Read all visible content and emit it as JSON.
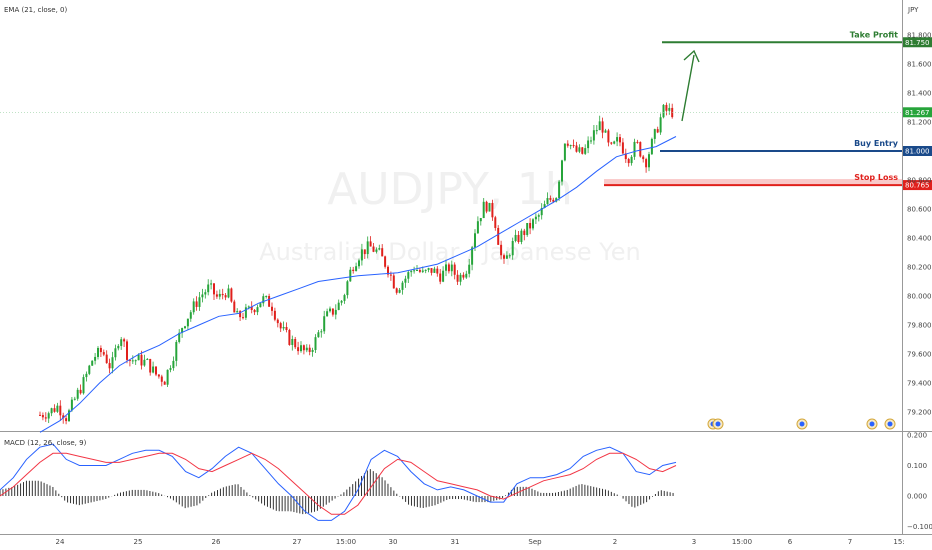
{
  "main_pane": {
    "indicator_label": "EMA (21, close, 0)",
    "currency_icon_text": "JPY",
    "watermark_symbol": "AUDJPY, 1h",
    "watermark_name": "Australian Dollar / Japanese Yen",
    "event_icon": "dividend-marker-icon"
  },
  "macd_pane": {
    "indicator_label": "MACD (12, 26, close, 9)"
  },
  "chart_data": [
    {
      "type": "candlestick",
      "symbol": "AUDJPY",
      "timeframe": "1h",
      "ylim": [
        79.1,
        81.95
      ],
      "y_ticks": [
        "81.800",
        "81.600",
        "81.400",
        "81.200",
        "80.800",
        "80.600",
        "80.400",
        "80.200",
        "80.000",
        "79.800",
        "79.600",
        "79.400",
        "79.200"
      ],
      "x_ticks": [
        "24",
        "25",
        "26",
        "27",
        "15:00",
        "30",
        "31",
        "Sep",
        "2",
        "3",
        "15:00",
        "6",
        "7",
        "15:"
      ],
      "close_path": [
        79.18,
        79.2,
        79.24,
        79.16,
        79.3,
        79.42,
        79.58,
        79.62,
        79.5,
        79.75,
        79.56,
        79.56,
        79.54,
        79.46,
        79.42,
        79.6,
        79.8,
        79.9,
        80.0,
        80.06,
        79.98,
        80.04,
        79.85,
        79.88,
        79.92,
        79.98,
        79.94,
        79.78,
        79.7,
        79.65,
        79.6,
        79.7,
        79.85,
        79.9,
        79.98,
        80.2,
        80.3,
        80.34,
        80.3,
        80.2,
        80.05,
        80.12,
        80.2,
        80.15,
        80.18,
        80.14,
        80.2,
        80.12,
        80.2,
        80.5,
        80.64,
        80.55,
        80.2,
        80.35,
        80.42,
        80.48,
        80.55,
        80.65,
        80.7,
        81.1,
        81.0,
        80.98,
        81.1,
        81.2,
        81.0,
        81.08,
        80.95,
        81.05,
        80.92,
        81.1,
        81.28,
        81.27
      ],
      "ema": [
        79.06,
        79.14,
        79.26,
        79.4,
        79.52,
        79.6,
        79.66,
        79.74,
        79.8,
        79.86,
        79.88,
        79.95,
        80.0,
        80.05,
        80.1,
        80.12,
        80.14,
        80.15,
        80.16,
        80.19,
        80.22,
        80.28,
        80.34,
        80.42,
        80.5,
        80.58,
        80.66,
        80.75,
        80.86,
        80.96,
        81.0,
        81.03,
        81.1
      ],
      "title": "",
      "annotations": [
        {
          "label": "Take Profit",
          "price": "81.750",
          "color": "#2e7d32"
        },
        {
          "label": "Buy Entry",
          "price": "81.000",
          "color": "#1a4a8a"
        },
        {
          "label": "Stop Loss",
          "price": "80.765",
          "color": "#e0201c"
        }
      ],
      "last_price": "81.267",
      "projection": "arrow up to Take Profit"
    },
    {
      "type": "line",
      "ylim": [
        -0.12,
        0.22
      ],
      "y_ticks": [
        "0.200",
        "0.100",
        "0.000",
        "−0.100"
      ],
      "series": [
        {
          "name": "",
          "color": "#2962ff",
          "values": [
            0.02,
            0.06,
            0.12,
            0.16,
            0.17,
            0.12,
            0.1,
            0.1,
            0.1,
            0.12,
            0.14,
            0.15,
            0.15,
            0.13,
            0.08,
            0.06,
            0.09,
            0.13,
            0.16,
            0.14,
            0.09,
            0.04,
            0.0,
            -0.05,
            -0.08,
            -0.08,
            -0.05,
            0.02,
            0.12,
            0.15,
            0.13,
            0.08,
            0.04,
            0.02,
            0.03,
            0.02,
            0.0,
            -0.02,
            -0.02,
            0.04,
            0.06,
            0.06,
            0.07,
            0.09,
            0.13,
            0.15,
            0.16,
            0.14,
            0.08,
            0.07,
            0.1,
            0.11
          ]
        },
        {
          "name": "",
          "color": "#f23645",
          "values": [
            0.0,
            0.03,
            0.07,
            0.11,
            0.14,
            0.14,
            0.13,
            0.12,
            0.11,
            0.11,
            0.12,
            0.13,
            0.14,
            0.14,
            0.12,
            0.09,
            0.08,
            0.1,
            0.12,
            0.14,
            0.12,
            0.09,
            0.05,
            0.01,
            -0.03,
            -0.06,
            -0.06,
            -0.03,
            0.03,
            0.09,
            0.12,
            0.11,
            0.08,
            0.05,
            0.04,
            0.03,
            0.02,
            0.0,
            -0.01,
            0.01,
            0.03,
            0.05,
            0.06,
            0.07,
            0.09,
            0.12,
            0.14,
            0.14,
            0.12,
            0.09,
            0.08,
            0.1
          ]
        }
      ],
      "histogram": [
        0.02,
        0.03,
        0.05,
        0.05,
        0.03,
        -0.02,
        -0.03,
        -0.02,
        -0.01,
        0.01,
        0.02,
        0.02,
        0.01,
        -0.01,
        -0.04,
        -0.03,
        0.01,
        0.03,
        0.04,
        0.0,
        -0.03,
        -0.05,
        -0.05,
        -0.06,
        -0.05,
        -0.02,
        0.01,
        0.05,
        0.09,
        0.06,
        0.01,
        -0.03,
        -0.04,
        -0.03,
        -0.01,
        -0.01,
        -0.02,
        -0.02,
        -0.01,
        0.03,
        0.03,
        0.01,
        0.01,
        0.02,
        0.04,
        0.03,
        0.02,
        0.0,
        -0.04,
        -0.02,
        0.02,
        0.01
      ]
    }
  ]
}
